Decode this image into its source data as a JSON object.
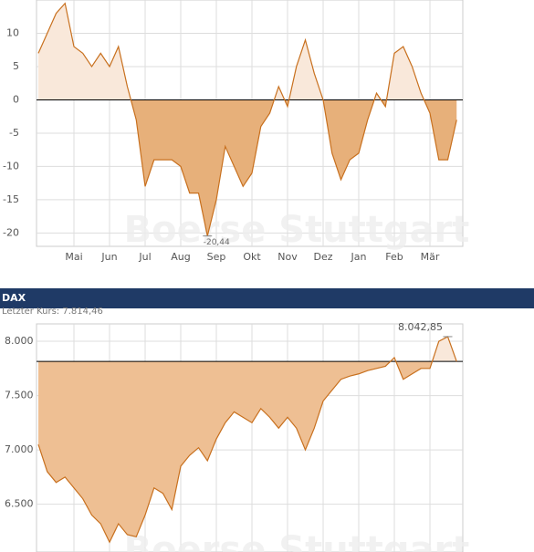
{
  "chart_data": [
    {
      "type": "area",
      "watermark": "Boerse Stuttgart",
      "categories": [
        null,
        null,
        null,
        null,
        "Mai",
        null,
        null,
        null,
        "Jun",
        null,
        null,
        null,
        "Jul",
        null,
        null,
        null,
        "Aug",
        null,
        null,
        null,
        "Sep",
        null,
        null,
        null,
        "Okt",
        null,
        null,
        null,
        "Nov",
        null,
        null,
        null,
        "Dez",
        null,
        null,
        null,
        "Jan",
        null,
        null,
        null,
        "Feb",
        null,
        null,
        null,
        "Mär",
        null,
        null,
        null
      ],
      "values": [
        7,
        10,
        13,
        14.5,
        8,
        7,
        5,
        7,
        5,
        8,
        2,
        -3,
        -13,
        -9,
        -9,
        -9,
        -10,
        -14,
        -14,
        -20.44,
        -15,
        -7,
        -10,
        -13,
        -11,
        -4,
        -2,
        2,
        -1,
        5,
        9,
        4,
        0,
        -8,
        -12,
        -9,
        -8,
        -3,
        1,
        -1,
        7,
        8,
        5,
        1,
        -2,
        -9,
        -9,
        -3
      ],
      "color": "#c8701e",
      "fill_above": "#f9e8da",
      "fill_below": "#e7b07a",
      "ylim": [
        -22,
        15
      ],
      "yticks": [
        -20,
        -15,
        -10,
        -5,
        0,
        5,
        10
      ],
      "grid": true,
      "min_label": {
        "value": -20.44,
        "label": "-20,44"
      }
    },
    {
      "type": "area",
      "title": "DAX",
      "watermark": "Boerse Stuttgart",
      "categories": [
        null,
        null,
        null,
        null,
        null,
        null,
        null,
        null,
        null,
        null,
        null,
        null,
        null,
        null,
        null,
        null,
        null,
        null,
        null,
        null,
        null,
        null,
        null,
        null,
        null,
        null,
        null,
        null,
        null,
        null,
        null,
        null,
        null,
        null,
        null,
        null,
        null,
        null,
        null,
        null,
        null,
        null,
        null,
        null,
        null,
        null,
        null,
        null
      ],
      "values": [
        7050,
        6800,
        6700,
        6750,
        6650,
        6550,
        6400,
        6320,
        6150,
        6320,
        6220,
        6200,
        6400,
        6650,
        6600,
        6450,
        6850,
        6950,
        7020,
        6900,
        7100,
        7250,
        7350,
        7300,
        7250,
        7380,
        7300,
        7200,
        7300,
        7200,
        7000,
        7200,
        7450,
        7550,
        7650,
        7680,
        7700,
        7730,
        7750,
        7770,
        7850,
        7650,
        7700,
        7750,
        7750,
        8000,
        8042.85,
        7814.46
      ],
      "color": "#c8701e",
      "fill_above": "#f9e8da",
      "fill_below": "#eebf93",
      "ylim": [
        6060,
        8160
      ],
      "yticks": [
        {
          "value": 6500,
          "label": "6.500"
        },
        {
          "value": 7000,
          "label": "7.000"
        },
        {
          "value": 7500,
          "label": "7.500"
        },
        {
          "value": 8000,
          "label": "8.000"
        }
      ],
      "grid": true,
      "reference": {
        "value": 7814.46,
        "label": "Letzter Kurs: 7.814,46"
      },
      "max_label": {
        "value": 8042.85,
        "label": "8.042,85"
      }
    }
  ]
}
